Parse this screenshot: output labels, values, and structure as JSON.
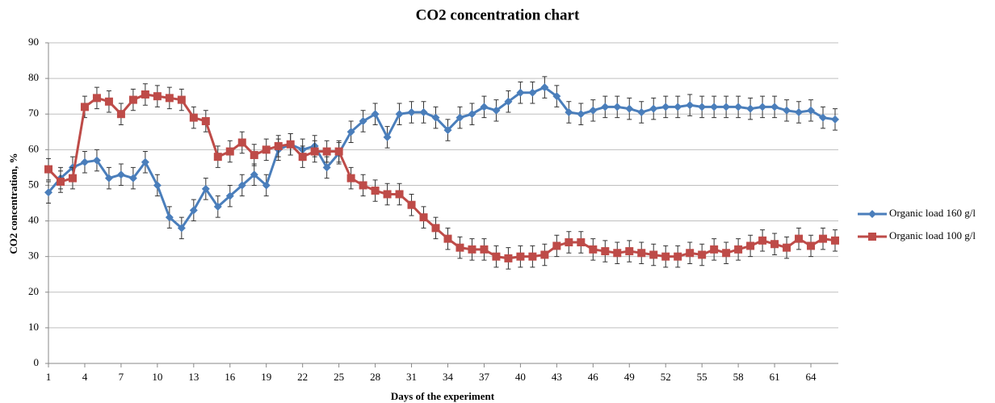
{
  "chart_data": {
    "type": "line",
    "title": "CO2 concentration chart",
    "x_label": "Days of the experiment",
    "y_label": "CO2 concentration, %",
    "x": [
      1,
      2,
      3,
      4,
      5,
      6,
      7,
      8,
      9,
      10,
      11,
      12,
      13,
      14,
      15,
      16,
      17,
      18,
      19,
      20,
      21,
      22,
      23,
      24,
      25,
      26,
      27,
      28,
      29,
      30,
      31,
      32,
      33,
      34,
      35,
      36,
      37,
      38,
      39,
      40,
      41,
      42,
      43,
      44,
      45,
      46,
      47,
      48,
      49,
      50,
      51,
      52,
      53,
      54,
      55,
      56,
      57,
      58,
      59,
      60,
      61,
      62,
      63,
      64,
      65,
      66
    ],
    "xlim": [
      1,
      66
    ],
    "xticks": [
      1,
      4,
      7,
      10,
      13,
      16,
      19,
      22,
      25,
      28,
      31,
      34,
      37,
      40,
      43,
      46,
      49,
      52,
      55,
      58,
      61,
      64
    ],
    "ylim": [
      0,
      90
    ],
    "yticks": [
      0,
      10,
      20,
      30,
      40,
      50,
      60,
      70,
      80,
      90
    ],
    "grid": true,
    "legend": "right",
    "series": [
      {
        "name": "Organic load 160 g/l",
        "color": "#4a7ebb",
        "marker": "diamond",
        "error": 3,
        "values": [
          48,
          52,
          55,
          56.5,
          57,
          52,
          53,
          52,
          56.5,
          50,
          41,
          38,
          43,
          49,
          44,
          47,
          50,
          53,
          50,
          60,
          61.5,
          60,
          61,
          55,
          59,
          65,
          68,
          70,
          63.5,
          70,
          70.5,
          70.5,
          69,
          65.5,
          69,
          70,
          72,
          71,
          73.5,
          76,
          76,
          77.5,
          75,
          70.5,
          70,
          71,
          72,
          72,
          71.5,
          70.5,
          71.5,
          72,
          72,
          72.5,
          72,
          72,
          72,
          72,
          71.5,
          72,
          72,
          71,
          70.5,
          71,
          69,
          68.5
        ]
      },
      {
        "name": "Organic load 100 g/l",
        "color": "#be4b48",
        "marker": "square",
        "error": 3,
        "values": [
          54.5,
          51,
          52,
          72,
          74.5,
          73.5,
          70,
          74,
          75.5,
          75,
          74.5,
          74,
          69,
          68,
          58,
          59.5,
          62,
          58.5,
          60,
          61,
          61.5,
          58,
          59.5,
          59.5,
          59.5,
          52,
          50,
          48.5,
          47.5,
          47.5,
          44.5,
          41,
          38,
          35,
          32.5,
          32,
          32,
          30,
          29.5,
          30,
          30,
          30.5,
          33,
          34,
          34,
          32,
          31.5,
          31,
          31.5,
          31,
          30.5,
          30,
          30,
          31,
          30.5,
          32,
          31,
          32,
          33,
          34.5,
          33.5,
          32.5,
          35,
          33,
          35,
          34.5
        ]
      }
    ]
  }
}
